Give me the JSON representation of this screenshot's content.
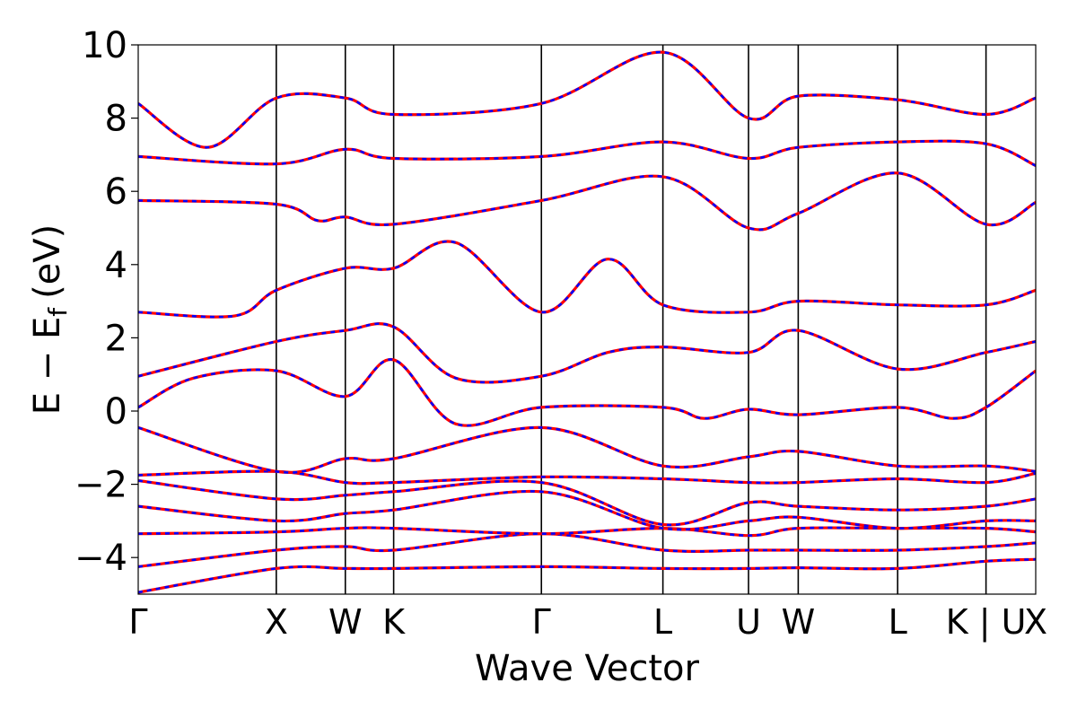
{
  "chart_data": {
    "type": "line",
    "xlabel": "Wave Vector",
    "ylabel": "E − E",
    "ylabel_subscript": "f",
    "ylabel_unit": "(eV)",
    "ylim": [
      -5,
      10
    ],
    "yticks": [
      -4,
      -2,
      0,
      2,
      4,
      6,
      8,
      10
    ],
    "ytick_labels": [
      "−4",
      "−2",
      "0",
      "2",
      "4",
      "6",
      "8",
      "10"
    ],
    "x_range": [
      0,
      6.5
    ],
    "kpoints": [
      {
        "label": "Γ",
        "x": 0.0
      },
      {
        "label": "X",
        "x": 1.0
      },
      {
        "label": "W",
        "x": 1.5
      },
      {
        "label": "K",
        "x": 1.85
      },
      {
        "label": "Γ",
        "x": 2.92
      },
      {
        "label": "L",
        "x": 3.8
      },
      {
        "label": "U",
        "x": 4.42
      },
      {
        "label": "W",
        "x": 4.78
      },
      {
        "label": "L",
        "x": 5.5
      },
      {
        "label": "K | U",
        "x": 6.14
      },
      {
        "label": "X",
        "x": 6.5
      }
    ],
    "grid": false,
    "series_colors": {
      "solid": "#ff0000",
      "dashed": "#0000ff"
    },
    "series": [
      {
        "values": [
          [
            0.0,
            -4.95
          ],
          [
            1.0,
            -4.3
          ],
          [
            1.5,
            -4.3
          ],
          [
            1.85,
            -4.3
          ],
          [
            2.92,
            -4.25
          ],
          [
            3.8,
            -4.3
          ],
          [
            4.42,
            -4.3
          ],
          [
            4.78,
            -4.28
          ],
          [
            5.5,
            -4.3
          ],
          [
            6.14,
            -4.1
          ],
          [
            6.5,
            -4.05
          ]
        ]
      },
      {
        "values": [
          [
            0.0,
            -4.25
          ],
          [
            1.0,
            -3.8
          ],
          [
            1.5,
            -3.7
          ],
          [
            1.85,
            -3.8
          ],
          [
            2.92,
            -3.35
          ],
          [
            3.8,
            -3.8
          ],
          [
            4.42,
            -3.8
          ],
          [
            4.78,
            -3.8
          ],
          [
            5.5,
            -3.8
          ],
          [
            6.14,
            -3.7
          ],
          [
            6.5,
            -3.6
          ]
        ]
      },
      {
        "values": [
          [
            0.0,
            -3.35
          ],
          [
            1.0,
            -3.3
          ],
          [
            1.5,
            -3.2
          ],
          [
            1.85,
            -3.2
          ],
          [
            2.92,
            -3.35
          ],
          [
            3.8,
            -3.2
          ],
          [
            4.42,
            -3.4
          ],
          [
            4.78,
            -3.2
          ],
          [
            5.5,
            -3.2
          ],
          [
            6.14,
            -3.2
          ],
          [
            6.5,
            -3.3
          ]
        ]
      },
      {
        "values": [
          [
            0.0,
            -2.6
          ],
          [
            1.0,
            -3.0
          ],
          [
            1.5,
            -2.8
          ],
          [
            1.85,
            -2.7
          ],
          [
            2.92,
            -2.2
          ],
          [
            3.8,
            -3.2
          ],
          [
            4.42,
            -3.0
          ],
          [
            4.78,
            -2.9
          ],
          [
            5.5,
            -3.2
          ],
          [
            6.14,
            -3.0
          ],
          [
            6.5,
            -3.0
          ]
        ]
      },
      {
        "values": [
          [
            0.0,
            -1.9
          ],
          [
            1.0,
            -2.4
          ],
          [
            1.5,
            -2.3
          ],
          [
            1.85,
            -2.2
          ],
          [
            2.92,
            -1.95
          ],
          [
            3.8,
            -3.1
          ],
          [
            4.42,
            -2.5
          ],
          [
            4.78,
            -2.6
          ],
          [
            5.5,
            -2.7
          ],
          [
            6.14,
            -2.6
          ],
          [
            6.5,
            -2.4
          ]
        ]
      },
      {
        "values": [
          [
            0.0,
            -1.75
          ],
          [
            1.0,
            -1.65
          ],
          [
            1.5,
            -1.95
          ],
          [
            1.85,
            -1.95
          ],
          [
            2.92,
            -1.8
          ],
          [
            3.8,
            -1.85
          ],
          [
            4.42,
            -1.95
          ],
          [
            4.78,
            -1.95
          ],
          [
            5.5,
            -1.85
          ],
          [
            6.14,
            -1.95
          ],
          [
            6.5,
            -1.7
          ]
        ]
      },
      {
        "values": [
          [
            0.0,
            -0.45
          ],
          [
            1.0,
            -1.65
          ],
          [
            1.5,
            -1.3
          ],
          [
            1.85,
            -1.3
          ],
          [
            2.92,
            -0.45
          ],
          [
            3.8,
            -1.5
          ],
          [
            4.42,
            -1.25
          ],
          [
            4.78,
            -1.1
          ],
          [
            5.5,
            -1.5
          ],
          [
            6.14,
            -1.5
          ],
          [
            6.5,
            -1.65
          ]
        ]
      },
      {
        "values": [
          [
            0.0,
            0.1
          ],
          [
            0.4,
            0.9
          ],
          [
            1.0,
            1.1
          ],
          [
            1.5,
            0.4
          ],
          [
            1.85,
            1.4
          ],
          [
            2.3,
            -0.35
          ],
          [
            2.92,
            0.1
          ],
          [
            3.8,
            0.1
          ],
          [
            4.1,
            -0.2
          ],
          [
            4.42,
            0.05
          ],
          [
            4.78,
            -0.1
          ],
          [
            5.5,
            0.1
          ],
          [
            5.9,
            -0.2
          ],
          [
            6.14,
            0.1
          ],
          [
            6.5,
            1.1
          ]
        ]
      },
      {
        "values": [
          [
            0.0,
            0.95
          ],
          [
            1.0,
            1.9
          ],
          [
            1.5,
            2.2
          ],
          [
            1.85,
            2.3
          ],
          [
            2.3,
            0.9
          ],
          [
            2.92,
            0.95
          ],
          [
            3.4,
            1.6
          ],
          [
            3.8,
            1.75
          ],
          [
            4.42,
            1.6
          ],
          [
            4.78,
            2.2
          ],
          [
            5.5,
            1.15
          ],
          [
            6.14,
            1.6
          ],
          [
            6.5,
            1.9
          ]
        ]
      },
      {
        "values": [
          [
            0.0,
            2.7
          ],
          [
            0.7,
            2.6
          ],
          [
            1.0,
            3.3
          ],
          [
            1.5,
            3.9
          ],
          [
            1.85,
            3.9
          ],
          [
            2.3,
            4.6
          ],
          [
            2.92,
            2.7
          ],
          [
            3.4,
            4.15
          ],
          [
            3.8,
            2.9
          ],
          [
            4.42,
            2.7
          ],
          [
            4.78,
            3.0
          ],
          [
            5.5,
            2.9
          ],
          [
            6.14,
            2.9
          ],
          [
            6.5,
            3.3
          ]
        ]
      },
      {
        "values": [
          [
            0.0,
            5.75
          ],
          [
            1.0,
            5.65
          ],
          [
            1.3,
            5.2
          ],
          [
            1.5,
            5.3
          ],
          [
            1.85,
            5.1
          ],
          [
            2.92,
            5.75
          ],
          [
            3.8,
            6.4
          ],
          [
            4.42,
            5.0
          ],
          [
            4.78,
            5.4
          ],
          [
            5.5,
            6.5
          ],
          [
            6.14,
            5.1
          ],
          [
            6.5,
            5.7
          ]
        ]
      },
      {
        "values": [
          [
            0.0,
            6.95
          ],
          [
            1.0,
            6.75
          ],
          [
            1.5,
            7.15
          ],
          [
            1.85,
            6.9
          ],
          [
            2.92,
            6.95
          ],
          [
            3.8,
            7.35
          ],
          [
            4.42,
            6.9
          ],
          [
            4.78,
            7.2
          ],
          [
            5.5,
            7.35
          ],
          [
            6.14,
            7.3
          ],
          [
            6.5,
            6.7
          ]
        ]
      },
      {
        "values": [
          [
            0.0,
            8.4
          ],
          [
            0.5,
            7.2
          ],
          [
            1.0,
            8.55
          ],
          [
            1.5,
            8.55
          ],
          [
            1.85,
            8.1
          ],
          [
            2.92,
            8.4
          ],
          [
            3.8,
            9.8
          ],
          [
            4.42,
            8.0
          ],
          [
            4.78,
            8.6
          ],
          [
            5.5,
            8.5
          ],
          [
            6.14,
            8.1
          ],
          [
            6.5,
            8.55
          ]
        ]
      }
    ]
  }
}
